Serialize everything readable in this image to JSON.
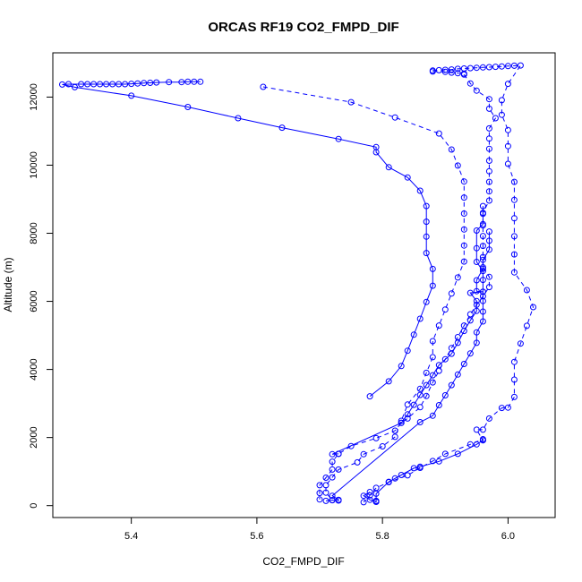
{
  "chart_data": {
    "type": "scatter",
    "title": "ORCAS RF19 CO2_FMPD_DIF",
    "xlabel": "CO2_FMPD_DIF",
    "ylabel": "Altitude (m)",
    "xlim": [
      5.275,
      6.075
    ],
    "ylim": [
      -350,
      13300
    ],
    "x_ticks": [
      5.4,
      5.6,
      5.8,
      6.0
    ],
    "x_tick_labels": [
      "5.4",
      "5.6",
      "5.8",
      "6.0"
    ],
    "y_ticks": [
      0,
      2000,
      4000,
      6000,
      8000,
      10000,
      12000
    ],
    "y_tick_labels": [
      "0",
      "2000",
      "4000",
      "6000",
      "8000",
      "10000",
      "12000"
    ],
    "grid": false,
    "color": "#0000ff",
    "series": [
      {
        "style": "solid",
        "points": [
          [
            5.51,
            12450
          ],
          [
            5.5,
            12450
          ],
          [
            5.49,
            12450
          ],
          [
            5.48,
            12440
          ],
          [
            5.46,
            12440
          ],
          [
            5.44,
            12430
          ],
          [
            5.43,
            12420
          ],
          [
            5.42,
            12410
          ],
          [
            5.41,
            12400
          ],
          [
            5.4,
            12390
          ],
          [
            5.39,
            12380
          ],
          [
            5.38,
            12380
          ],
          [
            5.37,
            12380
          ],
          [
            5.36,
            12380
          ],
          [
            5.35,
            12380
          ],
          [
            5.34,
            12380
          ],
          [
            5.33,
            12380
          ],
          [
            5.32,
            12380
          ],
          [
            5.3,
            12380
          ],
          [
            5.29,
            12370
          ],
          [
            5.31,
            12290
          ],
          [
            5.4,
            12040
          ],
          [
            5.49,
            11710
          ],
          [
            5.57,
            11380
          ],
          [
            5.64,
            11100
          ],
          [
            5.73,
            10770
          ],
          [
            5.79,
            10530
          ],
          [
            5.79,
            10380
          ],
          [
            5.81,
            9940
          ],
          [
            5.84,
            9640
          ],
          [
            5.86,
            9250
          ],
          [
            5.87,
            8800
          ],
          [
            5.87,
            8340
          ],
          [
            5.87,
            7900
          ],
          [
            5.87,
            7420
          ],
          [
            5.88,
            6950
          ],
          [
            5.88,
            6460
          ],
          [
            5.87,
            5980
          ],
          [
            5.86,
            5490
          ],
          [
            5.85,
            5020
          ],
          [
            5.84,
            4550
          ],
          [
            5.83,
            4100
          ],
          [
            5.81,
            3650
          ],
          [
            5.78,
            3210
          ]
        ]
      },
      {
        "style": "dashed",
        "points": [
          [
            5.61,
            12300
          ],
          [
            5.75,
            11850
          ],
          [
            5.82,
            11400
          ],
          [
            5.89,
            10930
          ],
          [
            5.91,
            10460
          ],
          [
            5.92,
            9990
          ],
          [
            5.93,
            9520
          ],
          [
            5.93,
            9050
          ],
          [
            5.93,
            8580
          ],
          [
            5.93,
            8110
          ],
          [
            5.93,
            7640
          ],
          [
            5.93,
            7170
          ],
          [
            5.92,
            6700
          ],
          [
            5.91,
            6230
          ],
          [
            5.9,
            5760
          ],
          [
            5.89,
            5290
          ],
          [
            5.88,
            4830
          ],
          [
            5.88,
            4360
          ],
          [
            5.87,
            3900
          ],
          [
            5.86,
            3430
          ],
          [
            5.84,
            2970
          ],
          [
            5.83,
            2490
          ],
          [
            5.82,
            2020
          ],
          [
            5.8,
            1740
          ],
          [
            5.77,
            1510
          ],
          [
            5.76,
            1270
          ],
          [
            5.73,
            1060
          ],
          [
            5.72,
            830
          ],
          [
            5.71,
            600
          ],
          [
            5.71,
            380
          ],
          [
            5.72,
            160
          ]
        ]
      },
      {
        "style": "dashed",
        "points": [
          [
            5.88,
            12780
          ],
          [
            5.89,
            12790
          ],
          [
            5.9,
            12800
          ],
          [
            5.91,
            12810
          ],
          [
            5.92,
            12830
          ],
          [
            5.93,
            12840
          ],
          [
            5.94,
            12850
          ],
          [
            5.95,
            12860
          ],
          [
            5.96,
            12870
          ],
          [
            5.97,
            12880
          ],
          [
            5.98,
            12890
          ],
          [
            5.99,
            12900
          ],
          [
            6.0,
            12910
          ],
          [
            6.01,
            12920
          ],
          [
            6.02,
            12930
          ],
          [
            6.0,
            12390
          ],
          [
            5.99,
            11910
          ],
          [
            5.99,
            11480
          ],
          [
            6.0,
            11030
          ],
          [
            6.0,
            10560
          ],
          [
            6.0,
            10040
          ],
          [
            6.01,
            9510
          ],
          [
            6.01,
            8980
          ],
          [
            6.01,
            8440
          ],
          [
            6.01,
            7910
          ],
          [
            6.01,
            7380
          ],
          [
            6.01,
            6850
          ],
          [
            6.03,
            6330
          ],
          [
            6.04,
            5830
          ],
          [
            6.03,
            5280
          ],
          [
            6.02,
            4760
          ],
          [
            6.01,
            4220
          ],
          [
            6.01,
            3700
          ],
          [
            6.01,
            3190
          ],
          [
            6.0,
            2880
          ],
          [
            5.99,
            2870
          ],
          [
            5.97,
            2560
          ],
          [
            5.96,
            2230
          ],
          [
            5.95,
            2230
          ],
          [
            5.96,
            1920
          ],
          [
            5.96,
            1950
          ],
          [
            5.94,
            1800
          ],
          [
            5.9,
            1520
          ],
          [
            5.88,
            1310
          ],
          [
            5.86,
            1110
          ],
          [
            5.84,
            890
          ],
          [
            5.81,
            690
          ],
          [
            5.79,
            520
          ],
          [
            5.78,
            300
          ],
          [
            5.77,
            100
          ]
        ]
      },
      {
        "style": "dashed",
        "points": [
          [
            5.88,
            12750
          ],
          [
            5.9,
            12740
          ],
          [
            5.91,
            12720
          ],
          [
            5.92,
            12700
          ],
          [
            5.93,
            12690
          ],
          [
            5.93,
            12660
          ],
          [
            5.94,
            12400
          ],
          [
            5.95,
            12190
          ],
          [
            5.97,
            11940
          ],
          [
            5.97,
            11660
          ],
          [
            5.98,
            11380
          ],
          [
            5.97,
            11080
          ],
          [
            5.97,
            10780
          ],
          [
            5.97,
            10480
          ],
          [
            5.97,
            10130
          ],
          [
            5.97,
            9820
          ],
          [
            5.97,
            9510
          ],
          [
            5.97,
            9230
          ],
          [
            5.97,
            8960
          ],
          [
            5.96,
            8600
          ],
          [
            5.96,
            8230
          ],
          [
            5.96,
            7920
          ],
          [
            5.96,
            7630
          ],
          [
            5.96,
            7300
          ],
          [
            5.96,
            7000
          ],
          [
            5.97,
            6720
          ],
          [
            5.97,
            6420
          ],
          [
            5.96,
            6150
          ],
          [
            5.95,
            5900
          ],
          [
            5.94,
            5620
          ],
          [
            5.93,
            5290
          ],
          [
            5.92,
            4950
          ],
          [
            5.91,
            4630
          ],
          [
            5.9,
            4300
          ],
          [
            5.89,
            3960
          ],
          [
            5.88,
            3620
          ],
          [
            5.87,
            3220
          ],
          [
            5.86,
            2890
          ],
          [
            5.84,
            2560
          ],
          [
            5.83,
            2430
          ],
          [
            5.82,
            2200
          ],
          [
            5.79,
            1980
          ],
          [
            5.75,
            1750
          ],
          [
            5.73,
            1520
          ],
          [
            5.72,
            1290
          ],
          [
            5.72,
            1060
          ],
          [
            5.71,
            820
          ],
          [
            5.7,
            600
          ],
          [
            5.7,
            370
          ],
          [
            5.7,
            180
          ]
        ]
      },
      {
        "style": "solid",
        "points": [
          [
            5.97,
            8050
          ],
          [
            5.97,
            7780
          ],
          [
            5.97,
            7520
          ],
          [
            5.96,
            7220
          ],
          [
            5.96,
            6960
          ],
          [
            5.95,
            6620
          ],
          [
            5.95,
            6300
          ],
          [
            5.96,
            6280
          ],
          [
            5.94,
            6250
          ],
          [
            5.95,
            6010
          ],
          [
            5.95,
            5720
          ],
          [
            5.94,
            5440
          ],
          [
            5.93,
            5130
          ],
          [
            5.92,
            4780
          ],
          [
            5.91,
            4460
          ],
          [
            5.89,
            4130
          ],
          [
            5.88,
            3830
          ],
          [
            5.87,
            3540
          ],
          [
            5.86,
            3250
          ],
          [
            5.85,
            2960
          ],
          [
            5.84,
            2680
          ],
          [
            5.83,
            2430
          ],
          [
            5.72,
            1510
          ],
          [
            5.73,
            1520
          ]
        ]
      },
      {
        "style": "solid",
        "points": [
          [
            5.96,
            8800
          ],
          [
            5.96,
            8570
          ],
          [
            5.96,
            8270
          ],
          [
            5.95,
            8080
          ],
          [
            5.95,
            7560
          ],
          [
            5.95,
            7160
          ],
          [
            5.96,
            6890
          ],
          [
            5.96,
            6630
          ],
          [
            5.96,
            6280
          ],
          [
            5.96,
            6010
          ],
          [
            5.96,
            5700
          ],
          [
            5.96,
            5410
          ],
          [
            5.95,
            5090
          ],
          [
            5.95,
            4780
          ],
          [
            5.94,
            4470
          ],
          [
            5.93,
            4160
          ],
          [
            5.92,
            3850
          ],
          [
            5.91,
            3540
          ],
          [
            5.9,
            3240
          ],
          [
            5.89,
            2950
          ],
          [
            5.88,
            2640
          ],
          [
            5.86,
            2450
          ],
          [
            5.72,
            290
          ],
          [
            5.73,
            170
          ],
          [
            5.73,
            150
          ],
          [
            5.72,
            160
          ],
          [
            5.71,
            140
          ]
        ]
      },
      {
        "style": "solid",
        "points": [
          [
            5.78,
            400
          ],
          [
            5.77,
            290
          ],
          [
            5.78,
            170
          ],
          [
            5.79,
            110
          ],
          [
            5.79,
            120
          ],
          [
            5.79,
            140
          ],
          [
            5.79,
            350
          ],
          [
            5.81,
            700
          ],
          [
            5.82,
            800
          ],
          [
            5.83,
            900
          ],
          [
            5.85,
            1100
          ],
          [
            5.86,
            1140
          ],
          [
            5.89,
            1300
          ],
          [
            5.92,
            1520
          ],
          [
            5.95,
            1800
          ],
          [
            5.96,
            1920
          ]
        ]
      }
    ]
  }
}
